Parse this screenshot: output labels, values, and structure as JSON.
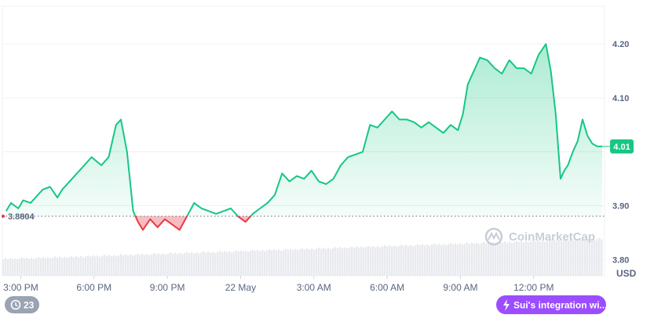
{
  "chart_data": {
    "type": "area",
    "unit_label": "USD",
    "y_ticks": [
      "4.20",
      "4.10",
      "3.90",
      "3.80"
    ],
    "ylim": [
      3.77,
      4.27
    ],
    "x_ticks": [
      "3:00 PM",
      "6:00 PM",
      "9:00 PM",
      "22 May",
      "3:00 AM",
      "6:00 AM",
      "9:00 AM",
      "12:00 PM"
    ],
    "x_tick_hours": [
      15,
      18,
      21,
      24,
      27,
      30,
      33,
      36
    ],
    "x_range_hours": [
      14.15,
      38.9
    ],
    "baseline": {
      "label": "3.8804",
      "value": 3.8804
    },
    "current": {
      "label": "4.01",
      "value": 4.01
    },
    "grid": true,
    "series": [
      {
        "x": [
          14.4,
          14.6,
          14.9,
          15.1,
          15.4,
          15.7,
          15.9,
          16.2,
          16.5,
          16.7,
          17.0,
          17.3,
          17.6,
          17.9,
          18.3,
          18.6,
          18.9,
          19.1,
          19.35,
          19.6,
          19.8,
          20.0,
          20.3,
          20.6,
          20.9,
          21.2,
          21.5,
          21.8,
          22.1,
          22.4,
          22.7,
          23.0,
          23.3,
          23.6,
          23.9,
          24.2,
          24.5,
          24.8,
          25.1,
          25.4,
          25.7,
          26.0,
          26.3,
          26.6,
          26.9,
          27.2,
          27.5,
          27.8,
          28.1,
          28.4,
          28.7,
          29.0,
          29.3,
          29.6,
          29.9,
          30.2,
          30.5,
          30.8,
          31.1,
          31.4,
          31.7,
          32.0,
          32.3,
          32.6,
          32.9,
          33.1,
          33.3,
          33.55,
          33.8,
          34.1,
          34.4,
          34.7,
          35.0,
          35.3,
          35.6,
          35.9,
          36.2,
          36.5,
          36.7,
          36.9,
          37.1,
          37.25,
          37.4,
          37.6,
          37.8,
          38.0,
          38.2,
          38.4,
          38.6,
          38.8
        ],
        "values": [
          3.89,
          3.905,
          3.895,
          3.91,
          3.905,
          3.92,
          3.93,
          3.935,
          3.915,
          3.93,
          3.945,
          3.96,
          3.975,
          3.99,
          3.975,
          3.99,
          4.05,
          4.06,
          4.0,
          3.89,
          3.87,
          3.855,
          3.875,
          3.86,
          3.875,
          3.865,
          3.855,
          3.88,
          3.905,
          3.895,
          3.89,
          3.885,
          3.89,
          3.895,
          3.88,
          3.87,
          3.885,
          3.895,
          3.905,
          3.92,
          3.96,
          3.945,
          3.955,
          3.95,
          3.965,
          3.945,
          3.94,
          3.95,
          3.975,
          3.99,
          3.995,
          4.0,
          4.05,
          4.045,
          4.06,
          4.075,
          4.06,
          4.06,
          4.055,
          4.045,
          4.055,
          4.045,
          4.035,
          4.05,
          4.04,
          4.07,
          4.125,
          4.15,
          4.175,
          4.17,
          4.155,
          4.145,
          4.17,
          4.155,
          4.155,
          4.145,
          4.18,
          4.2,
          4.15,
          4.07,
          3.95,
          3.965,
          3.975,
          4.0,
          4.02,
          4.06,
          4.03,
          4.015,
          4.01,
          4.01
        ]
      }
    ]
  },
  "watermark": "CoinMarketCap",
  "news_pill": {
    "label": "Sui's integration wi..."
  },
  "badge": {
    "count": "23"
  }
}
